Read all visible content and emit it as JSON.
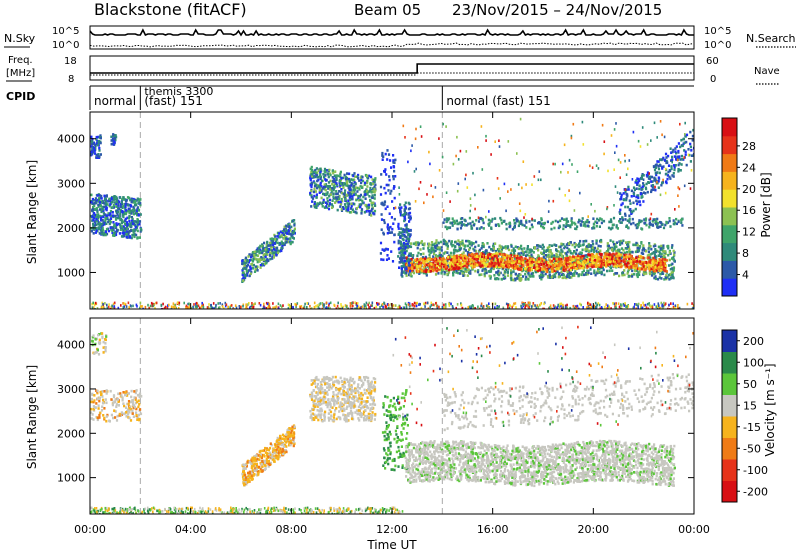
{
  "header": {
    "title": "Blackstone (fitACF)",
    "beam": "Beam 05",
    "dates": "23/Nov/2015 – 24/Nov/2015"
  },
  "status_panels": {
    "nsky_label": "N.Sky",
    "nsky_ticks": [
      "10^5",
      "10^0"
    ],
    "nsearch_label": "N.Search",
    "nsearch_ticks": [
      "10^5",
      "10^0"
    ],
    "freq_label_1": "Freq.",
    "freq_label_2": "[MHz]",
    "freq_ticks": [
      "18",
      "8"
    ],
    "nave_label": "Nave",
    "nave_ticks": [
      "60",
      "0"
    ],
    "cpid_label": "CPID",
    "cpid_segments": [
      {
        "start_hour": 0,
        "text": "normal"
      },
      {
        "start_hour": 2,
        "text_top": "themis 3300",
        "text": "(fast) 151"
      },
      {
        "start_hour": 14,
        "text": "normal (fast) 151"
      }
    ],
    "freq_step_hour": 13.0
  },
  "chart_data": [
    {
      "type": "heatmap",
      "name": "power-panel",
      "ylabel": "Slant Range [km]",
      "ylim": [
        180,
        4600
      ],
      "yticks": [
        1000,
        2000,
        3000,
        4000
      ],
      "xlim_hours": [
        0,
        24
      ],
      "colorbar": {
        "label": "Power [dB]",
        "ticks": [
          4,
          8,
          12,
          16,
          20,
          24,
          28
        ],
        "colors": [
          "#1f2ff5",
          "#2c59a8",
          "#2f8a7a",
          "#3fa46a",
          "#8cc152",
          "#f2e12d",
          "#f6b31d",
          "#f07a16",
          "#e6331a",
          "#d80f14"
        ]
      }
    },
    {
      "type": "heatmap",
      "name": "velocity-panel",
      "ylabel": "Slant Range [km]",
      "ylim": [
        180,
        4600
      ],
      "yticks": [
        1000,
        2000,
        3000,
        4000
      ],
      "xlim_hours": [
        0,
        24
      ],
      "colorbar": {
        "label": "Velocity [m s⁻¹]",
        "ticks": [
          "200",
          "100",
          "50",
          "15",
          "-15",
          "-50",
          "-100",
          "-200"
        ],
        "colors": [
          "#1b32a6",
          "#2a8a4a",
          "#5bc63a",
          "#c7c7c0",
          "#f6b31d",
          "#ef7b16",
          "#e6331a",
          "#d80f14"
        ]
      }
    }
  ],
  "x_axis": {
    "label": "Time UT",
    "ticks": [
      "00:00",
      "04:00",
      "08:00",
      "12:00",
      "16:00",
      "20:00",
      "00:00"
    ]
  }
}
